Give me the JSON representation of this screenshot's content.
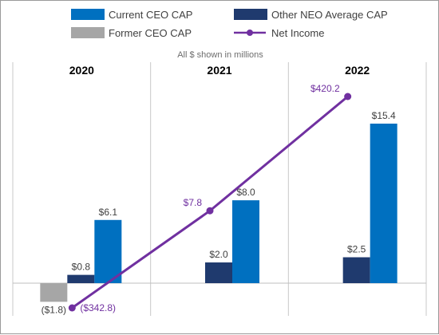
{
  "chart_data": {
    "type": "bar",
    "subtitle": "All $ shown in millions",
    "categories": [
      "2020",
      "2021",
      "2022"
    ],
    "series": [
      {
        "name": "Former CEO CAP",
        "color": "#a6a6a6",
        "values": [
          -1.8,
          null,
          null
        ],
        "labels": [
          "($1.8)",
          "",
          ""
        ]
      },
      {
        "name": "Other NEO Average CAP",
        "color": "#1f3a6e",
        "values": [
          0.8,
          2.0,
          2.5
        ],
        "labels": [
          "$0.8",
          "$2.0",
          "$2.5"
        ]
      },
      {
        "name": "Current CEO CAP",
        "color": "#0070c0",
        "values": [
          6.1,
          8.0,
          15.4
        ],
        "labels": [
          "$6.1",
          "$8.0",
          "$15.4"
        ]
      }
    ],
    "line_series": {
      "name": "Net Income",
      "color": "#7030a0",
      "values": [
        -342.8,
        7.8,
        420.2
      ],
      "labels": [
        "($342.8)",
        "$7.8",
        "$420.2"
      ]
    },
    "legend": [
      {
        "name": "Current CEO CAP",
        "color": "#0070c0",
        "kind": "bar"
      },
      {
        "name": "Other NEO Average CAP",
        "color": "#1f3a6e",
        "kind": "bar"
      },
      {
        "name": "Former CEO CAP",
        "color": "#a6a6a6",
        "kind": "bar"
      },
      {
        "name": "Net Income",
        "color": "#7030a0",
        "kind": "line"
      }
    ],
    "legend_position": "top",
    "bar_ylim": [
      -2.0,
      17.5
    ],
    "line_ylim": [
      -420,
      500
    ],
    "grid": false
  }
}
